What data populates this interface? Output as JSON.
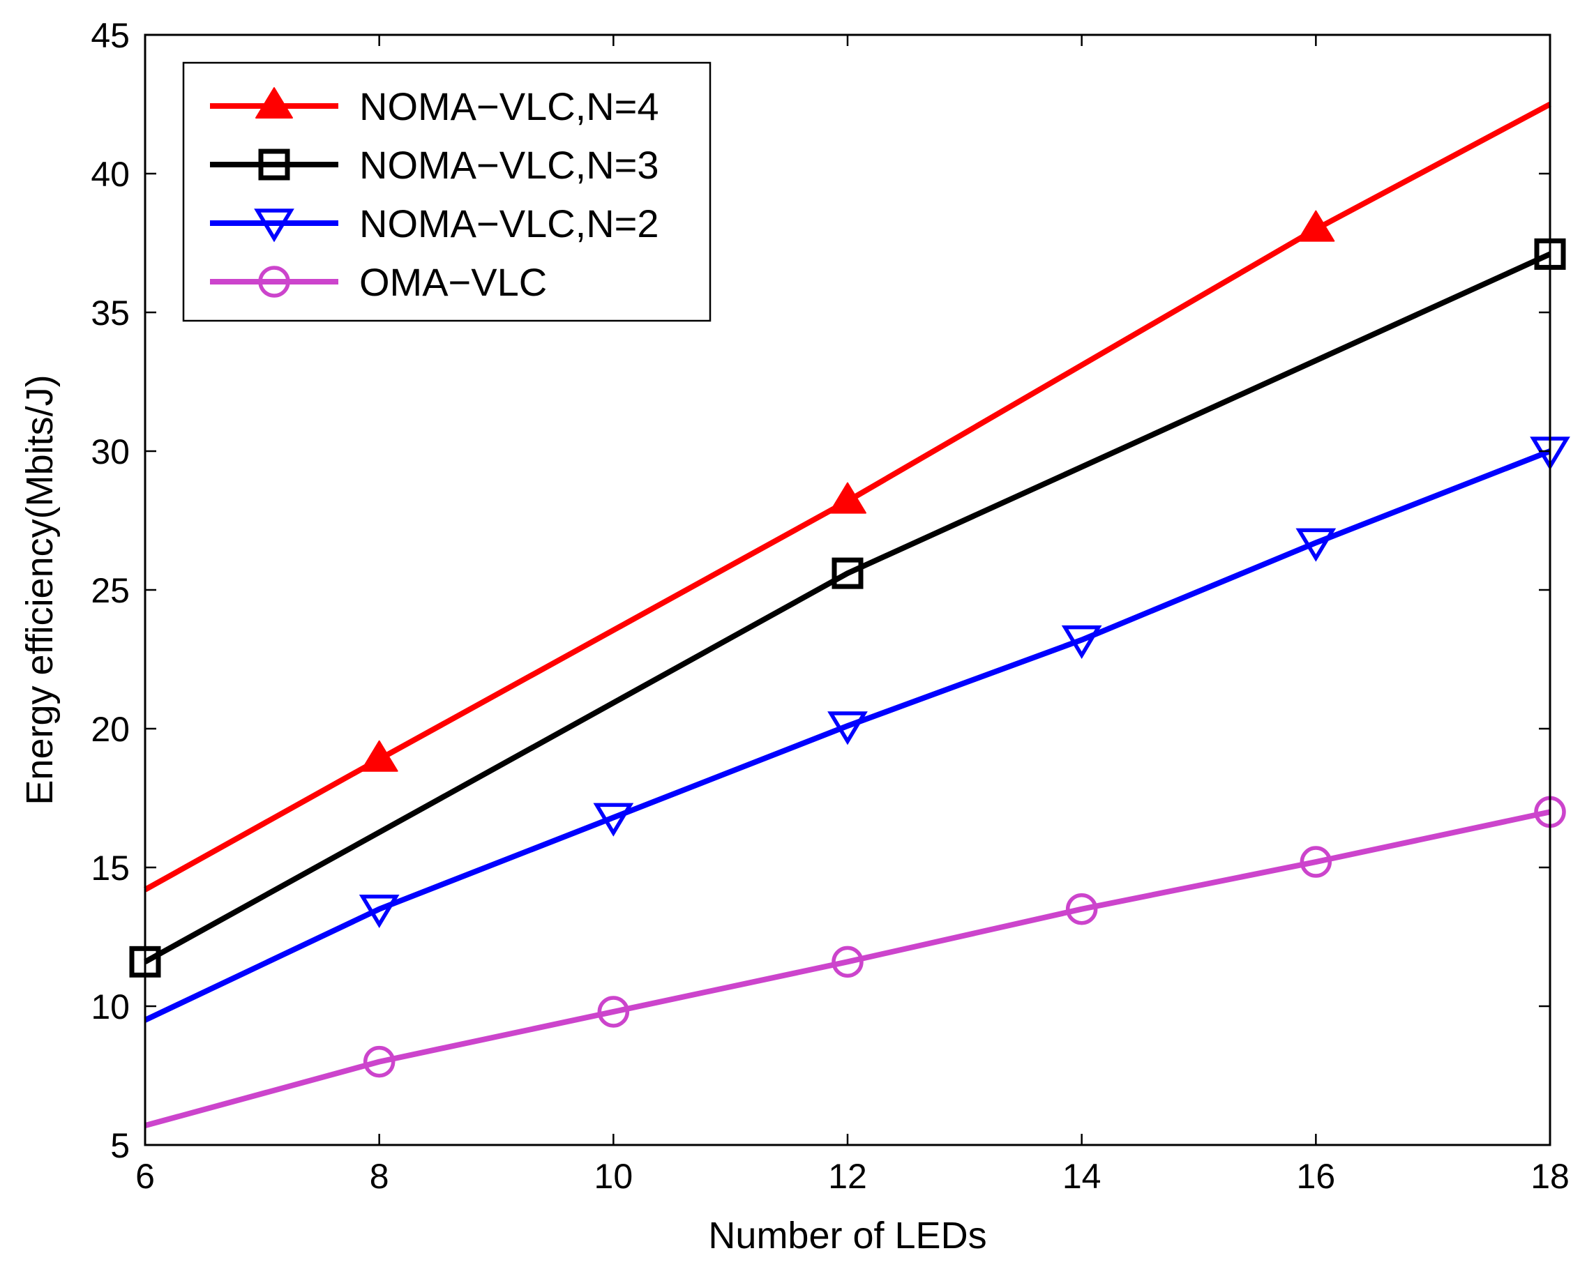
{
  "chart_data": {
    "type": "line",
    "title": "",
    "xlabel": "Number of LEDs",
    "ylabel": "Energy  efficiency(Mbits/J)",
    "xlim": [
      6,
      18
    ],
    "ylim": [
      5,
      45
    ],
    "xticks": [
      6,
      8,
      10,
      12,
      14,
      16,
      18
    ],
    "yticks": [
      5,
      10,
      15,
      20,
      25,
      30,
      35,
      40,
      45
    ],
    "grid": false,
    "legend_position": "top-left",
    "series": [
      {
        "name": "NOMA−VLC,N=4",
        "color": "#ff0000",
        "marker": "triangle-up",
        "x": [
          6,
          8,
          12,
          16,
          18
        ],
        "y": [
          14.2,
          18.9,
          28.2,
          38.0,
          42.5
        ],
        "markers": [
          false,
          true,
          true,
          true,
          false
        ]
      },
      {
        "name": "NOMA−VLC,N=3",
        "color": "#000000",
        "marker": "square",
        "x": [
          6,
          12,
          18
        ],
        "y": [
          11.6,
          25.6,
          37.1
        ],
        "markers": [
          true,
          true,
          true
        ]
      },
      {
        "name": "NOMA−VLC,N=2",
        "color": "#0000ff",
        "marker": "triangle-down",
        "x": [
          6,
          8,
          10,
          12,
          14,
          16,
          18
        ],
        "y": [
          9.5,
          13.5,
          16.8,
          20.1,
          23.2,
          26.7,
          30.0
        ],
        "markers": [
          false,
          true,
          true,
          true,
          true,
          true,
          true
        ]
      },
      {
        "name": "OMA−VLC",
        "color": "#cc44cc",
        "marker": "circle",
        "x": [
          6,
          8,
          10,
          12,
          14,
          16,
          18
        ],
        "y": [
          5.7,
          8.0,
          9.8,
          11.6,
          13.5,
          15.2,
          17.0
        ],
        "markers": [
          false,
          true,
          true,
          true,
          true,
          true,
          true
        ]
      }
    ]
  }
}
